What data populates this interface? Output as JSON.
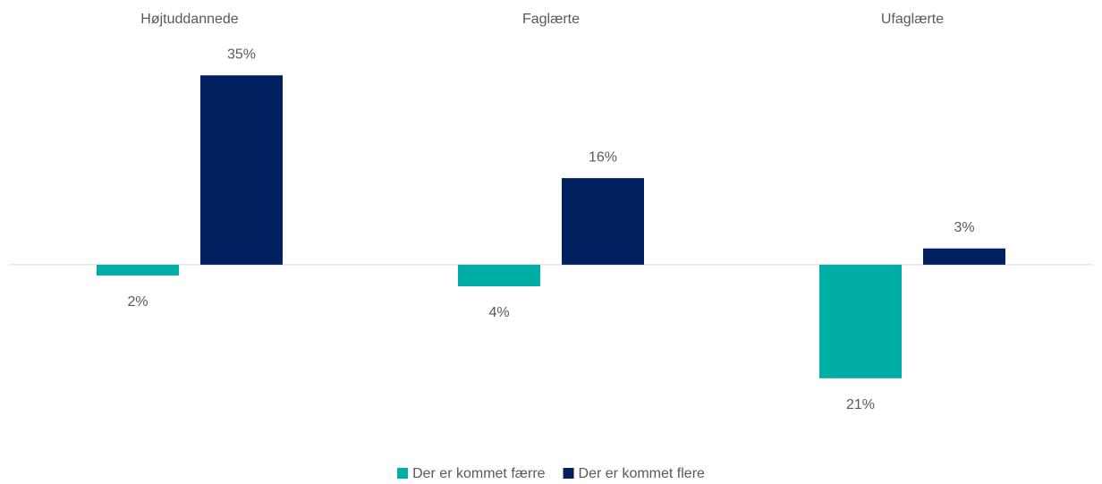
{
  "chart_data": {
    "type": "bar",
    "categories": [
      "Højtuddannede",
      "Faglærte",
      "Ufaglærte"
    ],
    "series": [
      {
        "name": "Der er kommet færre",
        "color": "#00ada5",
        "values": [
          -2,
          -4,
          -21
        ],
        "value_labels": [
          "2%",
          "4%",
          "21%"
        ]
      },
      {
        "name": "Der er kommet flere",
        "color": "#002060",
        "values": [
          35,
          16,
          3
        ],
        "value_labels": [
          "35%",
          "16%",
          "3%"
        ]
      }
    ],
    "ylim": [
      -25,
      40
    ],
    "legend": "bottom"
  }
}
